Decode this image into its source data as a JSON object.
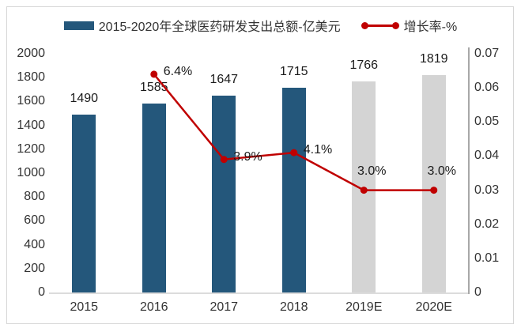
{
  "colors": {
    "bar_actual": "#24577B",
    "bar_estimate": "#D4D4D4",
    "line": "#C00000",
    "axis_text": "#333333",
    "frame_border": "#D6D6D6"
  },
  "legend": [
    {
      "label": "2015-2020年全球医药研发支出总额-亿美元",
      "marker": "bar",
      "color": "#24577B"
    },
    {
      "label": "增长率-%",
      "marker": "line-dots",
      "color": "#C00000"
    }
  ],
  "chart_data": {
    "type": "bar+line",
    "categories": [
      "2015",
      "2016",
      "2017",
      "2018",
      "2019E",
      "2020E"
    ],
    "series": [
      {
        "name": "2015-2020年全球医药研发支出总额-亿美元",
        "type": "bar",
        "axis": "left",
        "values": [
          1490,
          1585,
          1647,
          1715,
          1766,
          1819
        ],
        "value_labels": [
          "1490",
          "1585",
          "1647",
          "1715",
          "1766",
          "1819"
        ],
        "colors": [
          "#24577B",
          "#24577B",
          "#24577B",
          "#24577B",
          "#D4D4D4",
          "#D4D4D4"
        ]
      },
      {
        "name": "增长率-%",
        "type": "line",
        "axis": "right",
        "color": "#C00000",
        "values": [
          null,
          0.064,
          0.039,
          0.041,
          0.03,
          0.03
        ],
        "value_labels": [
          "",
          "6.4%",
          "3.9%",
          "4.1%",
          "3.0%",
          "3.0%"
        ]
      }
    ],
    "left_axis": {
      "min": 0,
      "max": 2000,
      "ticks": [
        "0",
        "200",
        "400",
        "600",
        "800",
        "1000",
        "1200",
        "1400",
        "1600",
        "1800",
        "2000"
      ]
    },
    "right_axis": {
      "min": 0,
      "max": 0.07,
      "ticks": [
        "0",
        "0.01",
        "0.02",
        "0.03",
        "0.04",
        "0.05",
        "0.06",
        "0.07"
      ]
    },
    "grid": false,
    "legend_position": "top"
  }
}
